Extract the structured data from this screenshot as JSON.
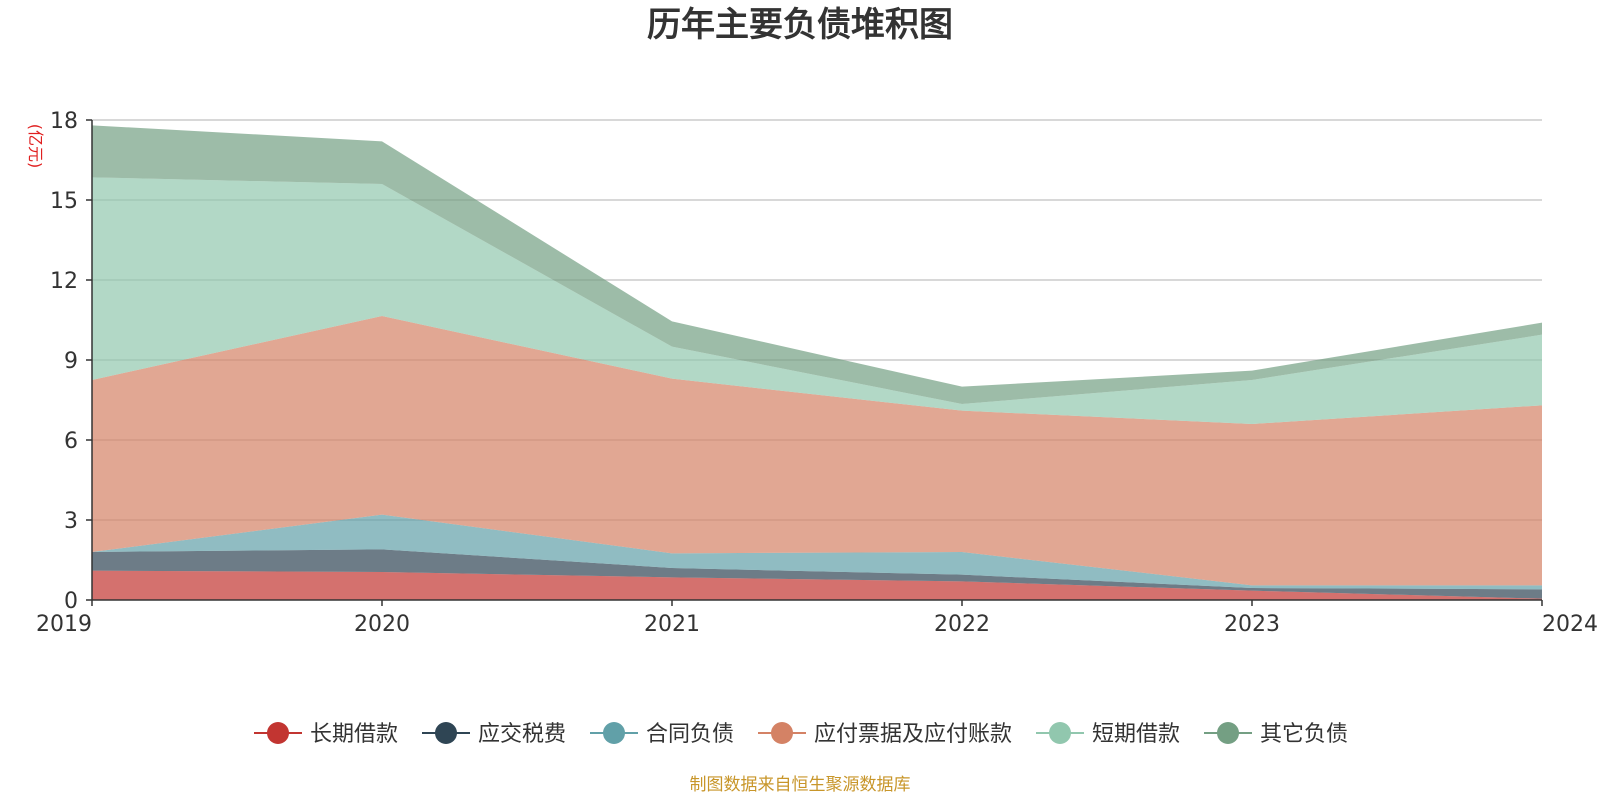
{
  "chart_data": {
    "type": "area",
    "stacked": true,
    "title": "历年主要负债堆积图",
    "unit_label": "(亿元)",
    "categories": [
      "2019",
      "2020",
      "2021",
      "2022",
      "2023",
      "2024"
    ],
    "ylim": [
      0,
      18
    ],
    "yticks": [
      "0",
      "3",
      "6",
      "9",
      "12",
      "15",
      "18"
    ],
    "grid": true,
    "legend_position": "bottom",
    "series": [
      {
        "name": "长期借款",
        "color": "#c23531",
        "values": [
          1.1,
          1.05,
          0.85,
          0.7,
          0.35,
          0.05
        ]
      },
      {
        "name": "应交税费",
        "color": "#2f4554",
        "values": [
          0.7,
          0.85,
          0.35,
          0.25,
          0.1,
          0.35
        ]
      },
      {
        "name": "合同负债",
        "color": "#61a0a8",
        "values": [
          0.0,
          1.3,
          0.55,
          0.85,
          0.1,
          0.15
        ]
      },
      {
        "name": "应付票据及应付账款",
        "color": "#d48265",
        "values": [
          6.45,
          7.45,
          6.55,
          5.3,
          6.05,
          6.75
        ]
      },
      {
        "name": "短期借款",
        "color": "#91c7ae",
        "values": [
          7.6,
          4.95,
          1.2,
          0.25,
          1.65,
          2.65
        ]
      },
      {
        "name": "其它负债",
        "color": "#749f83",
        "values": [
          1.95,
          1.6,
          0.95,
          0.65,
          0.35,
          0.45
        ]
      }
    ]
  },
  "footer": {
    "source": "制图数据来自恒生聚源数据库"
  }
}
